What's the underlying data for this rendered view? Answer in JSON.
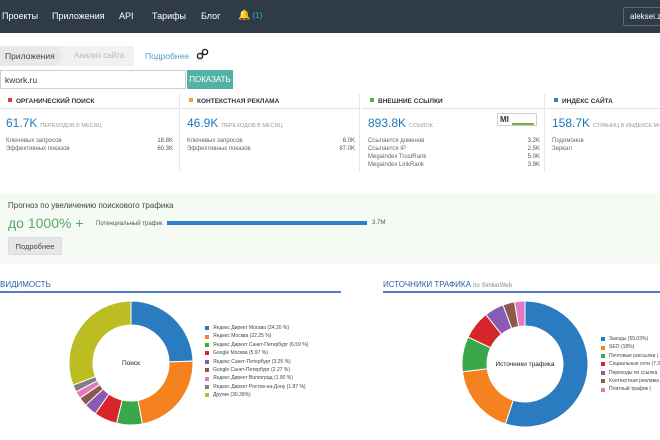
{
  "nav": {
    "items": [
      "Проекты",
      "Приложения",
      "API",
      "Тарифы",
      "Блог"
    ],
    "notif_count": "(1)",
    "user": "aleksei.z"
  },
  "breadcrumb": {
    "apps": "Приложения",
    "analysis": "Анализ сайта",
    "more": "Подробнее"
  },
  "search": {
    "value": "kwork.ru",
    "button": "ПОКАЗАТЬ"
  },
  "cards": {
    "organic": {
      "title": "ОРГАНИЧЕСКИЙ ПОИСК",
      "color": "#e53935",
      "big": "61.7K",
      "sub": "ПЕРЕХОДОВ В МЕСЯЦ",
      "rows": [
        [
          "Ключевых запросов",
          "18.8K"
        ],
        [
          "Эффективных показов",
          "60.3K"
        ]
      ]
    },
    "context": {
      "title": "КОНТЕКСТНАЯ РЕКЛАМА",
      "color": "#f5a623",
      "big": "46.9K",
      "sub": "ПЕРЕХОДОВ В МЕСЯЦ",
      "rows": [
        [
          "Ключевых запросов",
          "6.0K"
        ],
        [
          "Эффективных показов",
          "87.0K"
        ]
      ]
    },
    "links": {
      "title": "ВНЕШНИЕ ССЫЛКИ",
      "color": "#4caf50",
      "big": "893.8K",
      "sub": "ССЫЛОК",
      "logo": "MI",
      "rows": [
        [
          "Ссылается доменов",
          "3.2K"
        ],
        [
          "Ссылается IP",
          "2.5K"
        ],
        [
          "Megaindex TrustRank",
          "5.0K"
        ],
        [
          "Megaindex LinkRank",
          "3.9K"
        ]
      ]
    },
    "index": {
      "title": "ИНДЕКС САЙТА",
      "color": "#2c82c9",
      "big": "158.7K",
      "sub": "СТРАНИЦ В ИНДЕКСЕ MI",
      "rows": [
        [
          "Подомонов",
          ""
        ],
        [
          "Зеркал",
          ""
        ]
      ]
    }
  },
  "forecast": {
    "title": "Прогноз по увеличению поискового трафика",
    "big": "до 1000% +",
    "label": "Потенциальный трафик",
    "value": "3.7M",
    "button": "Подробнее"
  },
  "visibility": {
    "title": "ВИДИМОСТЬ",
    "center": "Поиск",
    "legend": [
      {
        "label": "Яндекс Директ Москва (24.20 %)",
        "value": 24.2,
        "color": "#2b7bc0"
      },
      {
        "label": "Яндекс Москва (22.25 %)",
        "value": 22.25,
        "color": "#f5821f"
      },
      {
        "label": "Яндекс Директ Санкт-Петербург (6.59 %)",
        "value": 6.59,
        "color": "#3aa84a"
      },
      {
        "label": "Google Москва (5.97 %)",
        "value": 5.97,
        "color": "#d6262b"
      },
      {
        "label": "Яндекс Санкт-Петербург (3.25 %)",
        "value": 3.25,
        "color": "#8a5bb5"
      },
      {
        "label": "Google Санкт-Петербург (2.27 %)",
        "value": 2.27,
        "color": "#8c5a4b"
      },
      {
        "label": "Яндекс Директ Волгоград (1.90 %)",
        "value": 1.9,
        "color": "#e377c2"
      },
      {
        "label": "Яндекс Директ Ростов-на-Дону (1.87 %)",
        "value": 1.87,
        "color": "#7f7f7f"
      },
      {
        "label": "Другие (30.39%)",
        "value": 30.39,
        "color": "#bcbd22"
      }
    ]
  },
  "traffic": {
    "title": "ИСТОЧНИКИ ТРАФИКА",
    "subtitle": "по SimilarWeb",
    "center": "Источники трафика",
    "legend": [
      {
        "label": "Заходы (55.03%)",
        "value": 55.03,
        "color": "#2b7bc0"
      },
      {
        "label": "SEO (18%)",
        "value": 18.0,
        "color": "#f5821f"
      },
      {
        "label": "Почтовые рассылки (",
        "value": 9.0,
        "color": "#3aa84a"
      },
      {
        "label": "Социальные сети (7.3",
        "value": 7.3,
        "color": "#d6262b"
      },
      {
        "label": "Переходы по ссылка",
        "value": 5.0,
        "color": "#8a5bb5"
      },
      {
        "label": "Контекстная реклама",
        "value": 3.0,
        "color": "#8c5a4b"
      },
      {
        "label": "Платный трафик (",
        "value": 2.67,
        "color": "#e377c2"
      }
    ]
  }
}
